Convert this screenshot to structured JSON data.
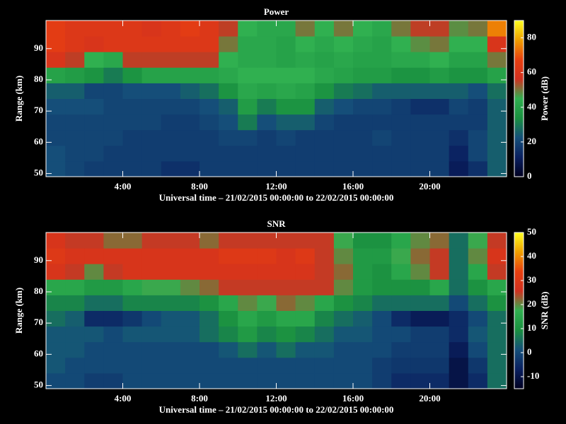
{
  "chart_data": [
    {
      "type": "heatmap",
      "title": "Power",
      "xlabel": "Universal time – 21/02/2015 00:00:00 to 22/02/2015 00:00:00",
      "ylabel": "Range (km)",
      "colorbar_label": "Power (dB)",
      "x": [
        0,
        1,
        2,
        3,
        4,
        5,
        6,
        7,
        8,
        9,
        10,
        11,
        12,
        13,
        14,
        15,
        16,
        17,
        18,
        19,
        20,
        21,
        22,
        23
      ],
      "y": [
        49,
        54,
        59,
        64,
        69,
        74,
        79,
        84,
        89,
        94
      ],
      "z": [
        [
          22,
          20,
          18,
          18,
          18,
          18,
          15,
          15,
          18,
          18,
          18,
          18,
          18,
          18,
          18,
          18,
          18,
          18,
          18,
          18,
          18,
          10,
          15,
          25
        ],
        [
          22,
          20,
          20,
          18,
          18,
          18,
          18,
          18,
          18,
          18,
          18,
          18,
          18,
          18,
          18,
          18,
          18,
          18,
          18,
          18,
          18,
          12,
          20,
          25
        ],
        [
          20,
          20,
          20,
          20,
          18,
          18,
          18,
          18,
          18,
          20,
          20,
          18,
          20,
          18,
          18,
          18,
          18,
          20,
          18,
          18,
          18,
          15,
          20,
          25
        ],
        [
          20,
          20,
          20,
          20,
          20,
          20,
          18,
          18,
          20,
          22,
          30,
          22,
          25,
          25,
          20,
          18,
          18,
          18,
          18,
          18,
          18,
          18,
          18,
          25
        ],
        [
          22,
          22,
          22,
          20,
          20,
          20,
          20,
          20,
          22,
          25,
          38,
          30,
          35,
          35,
          25,
          22,
          20,
          20,
          18,
          15,
          15,
          20,
          18,
          25
        ],
        [
          25,
          25,
          20,
          20,
          22,
          22,
          22,
          25,
          28,
          35,
          42,
          40,
          42,
          40,
          35,
          30,
          28,
          25,
          25,
          25,
          25,
          25,
          22,
          28
        ],
        [
          40,
          38,
          35,
          30,
          35,
          40,
          40,
          40,
          40,
          42,
          45,
          45,
          45,
          45,
          42,
          40,
          38,
          38,
          35,
          35,
          38,
          35,
          35,
          40
        ],
        [
          60,
          55,
          45,
          42,
          55,
          55,
          55,
          55,
          55,
          45,
          42,
          42,
          40,
          42,
          40,
          42,
          40,
          40,
          42,
          42,
          45,
          40,
          40,
          50
        ],
        [
          65,
          62,
          60,
          62,
          62,
          62,
          62,
          62,
          62,
          50,
          42,
          42,
          40,
          45,
          42,
          45,
          42,
          40,
          45,
          48,
          50,
          45,
          45,
          60
        ],
        [
          65,
          62,
          62,
          62,
          62,
          60,
          62,
          65,
          62,
          55,
          45,
          42,
          42,
          50,
          45,
          50,
          45,
          42,
          50,
          55,
          55,
          48,
          50,
          75
        ]
      ],
      "xlim": [
        0,
        24
      ],
      "xticks": [
        {
          "value": 4,
          "label": "4:00"
        },
        {
          "value": 8,
          "label": "8:00"
        },
        {
          "value": 12,
          "label": "12:00"
        },
        {
          "value": 16,
          "label": "16:00"
        },
        {
          "value": 20,
          "label": "20:00"
        }
      ],
      "ylim": [
        49,
        99
      ],
      "yticks": [
        50,
        60,
        70,
        80,
        90
      ],
      "clim": [
        0,
        90
      ],
      "cticks": [
        0,
        20,
        40,
        60,
        80
      ],
      "colorscale": [
        "#000020",
        "#0a2060",
        "#15507a",
        "#1a9040",
        "#30b050",
        "#d03020",
        "#e84010",
        "#f0a000",
        "#ffff20"
      ]
    },
    {
      "type": "heatmap",
      "title": "SNR",
      "xlabel": "Universal time – 21/02/2015 00:00:00 to 22/02/2015 00:00:00",
      "ylabel": "Range (km)",
      "colorbar_label": "SNR (dB)",
      "x": [
        0,
        1,
        2,
        3,
        4,
        5,
        6,
        7,
        8,
        9,
        10,
        11,
        12,
        13,
        14,
        15,
        16,
        17,
        18,
        19,
        20,
        21,
        22,
        23
      ],
      "y": [
        49,
        54,
        59,
        64,
        69,
        74,
        79,
        84,
        89,
        94
      ],
      "z": [
        [
          0,
          0,
          -2,
          -2,
          0,
          0,
          0,
          0,
          0,
          0,
          0,
          0,
          0,
          0,
          0,
          0,
          0,
          -2,
          -5,
          -5,
          -5,
          -10,
          -5,
          5
        ],
        [
          2,
          0,
          0,
          0,
          0,
          0,
          0,
          0,
          0,
          0,
          0,
          0,
          0,
          0,
          0,
          0,
          0,
          -2,
          -3,
          -3,
          -3,
          -10,
          -3,
          5
        ],
        [
          2,
          2,
          0,
          0,
          0,
          0,
          0,
          0,
          0,
          2,
          5,
          2,
          5,
          2,
          2,
          0,
          0,
          0,
          -2,
          -2,
          -2,
          -8,
          0,
          5
        ],
        [
          2,
          2,
          2,
          0,
          2,
          2,
          2,
          2,
          5,
          8,
          12,
          8,
          10,
          8,
          5,
          2,
          2,
          0,
          0,
          -2,
          -2,
          -5,
          2,
          5
        ],
        [
          5,
          3,
          -5,
          -5,
          -3,
          0,
          2,
          2,
          5,
          10,
          15,
          12,
          15,
          15,
          8,
          5,
          3,
          0,
          -5,
          -8,
          -8,
          -5,
          0,
          5
        ],
        [
          8,
          8,
          5,
          5,
          8,
          8,
          8,
          8,
          10,
          15,
          20,
          18,
          22,
          20,
          15,
          10,
          8,
          5,
          5,
          5,
          5,
          0,
          5,
          10
        ],
        [
          15,
          15,
          12,
          12,
          15,
          18,
          18,
          20,
          22,
          25,
          25,
          25,
          25,
          25,
          25,
          20,
          12,
          10,
          10,
          10,
          15,
          5,
          10,
          15
        ],
        [
          28,
          25,
          20,
          25,
          28,
          28,
          28,
          28,
          28,
          28,
          28,
          28,
          28,
          28,
          25,
          22,
          12,
          10,
          15,
          20,
          25,
          5,
          15,
          25
        ],
        [
          30,
          28,
          28,
          28,
          28,
          28,
          28,
          28,
          28,
          30,
          30,
          30,
          28,
          30,
          25,
          20,
          12,
          12,
          18,
          22,
          25,
          5,
          20,
          28
        ],
        [
          28,
          25,
          25,
          22,
          22,
          25,
          25,
          25,
          22,
          25,
          25,
          25,
          25,
          25,
          25,
          18,
          10,
          10,
          15,
          20,
          22,
          5,
          18,
          25
        ]
      ],
      "xlim": [
        0,
        24
      ],
      "xticks": [
        {
          "value": 4,
          "label": "4:00"
        },
        {
          "value": 8,
          "label": "8:00"
        },
        {
          "value": 12,
          "label": "12:00"
        },
        {
          "value": 16,
          "label": "16:00"
        },
        {
          "value": 20,
          "label": "20:00"
        }
      ],
      "ylim": [
        49,
        99
      ],
      "yticks": [
        50,
        60,
        70,
        80,
        90
      ],
      "clim": [
        -15,
        50
      ],
      "cticks": [
        -10,
        0,
        10,
        20,
        30,
        40,
        50
      ],
      "colorscale": [
        "#000020",
        "#0a2060",
        "#15507a",
        "#1a9040",
        "#30b050",
        "#d03020",
        "#e84010",
        "#f0a000",
        "#ffff20"
      ]
    }
  ]
}
